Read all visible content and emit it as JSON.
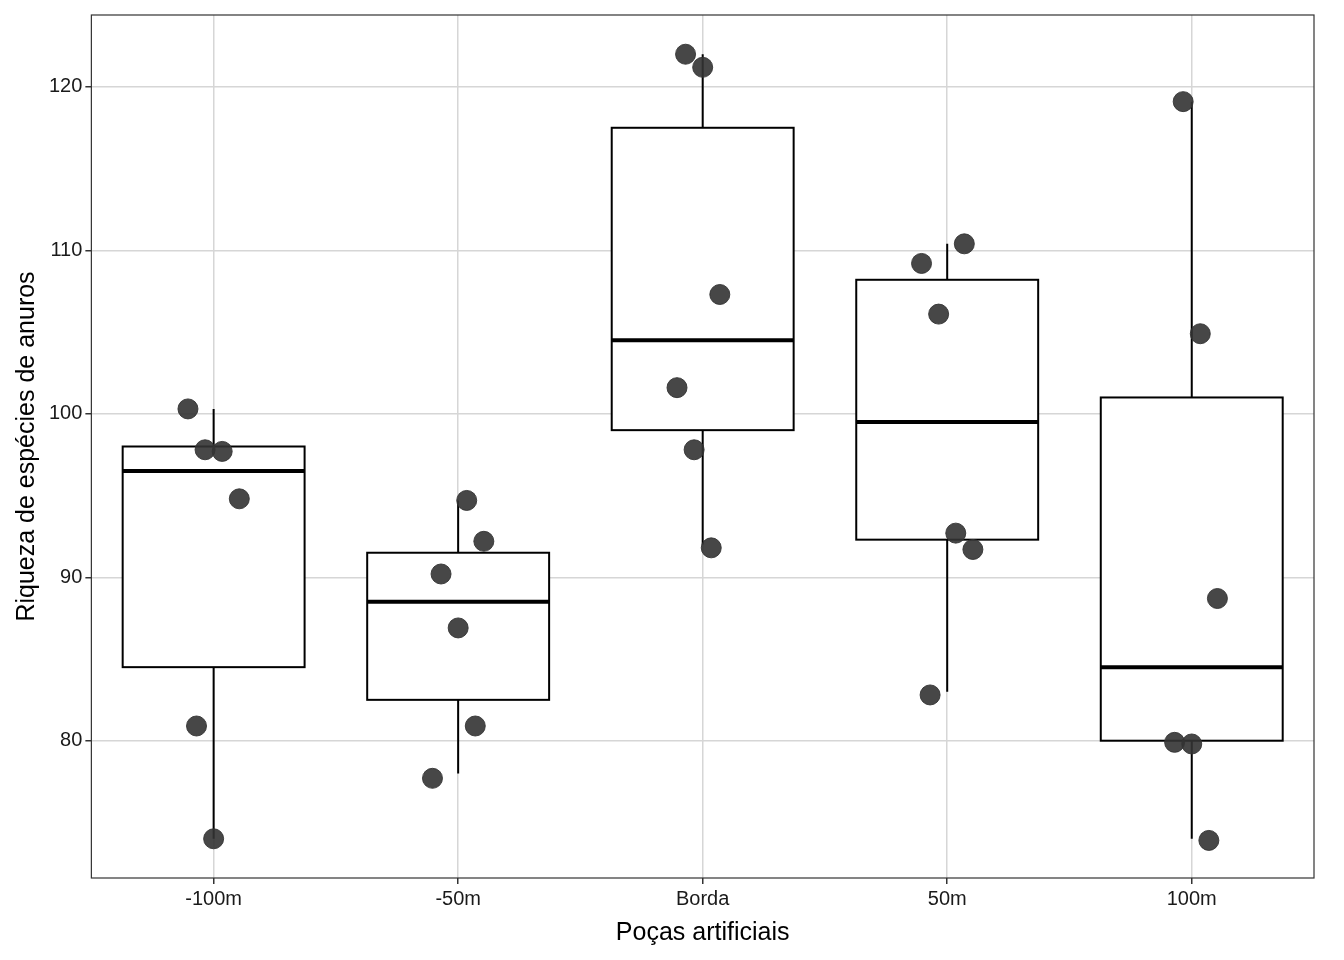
{
  "chart_data": {
    "type": "box",
    "xlabel": "Poças artificiais",
    "ylabel": "Riqueza de espécies de anuros",
    "categories": [
      "-100m",
      "-50m",
      "Borda",
      "50m",
      "100m"
    ],
    "values": [
      [
        100.3,
        97.8,
        97.7,
        94.8,
        80.9,
        74.0
      ],
      [
        94.7,
        92.2,
        90.2,
        86.9,
        80.9,
        77.7
      ],
      [
        122.0,
        121.2,
        107.3,
        101.6,
        97.8,
        91.8
      ],
      [
        110.4,
        109.2,
        106.1,
        92.7,
        91.7,
        82.8
      ],
      [
        119.1,
        104.9,
        88.7,
        79.9,
        79.8,
        73.9
      ]
    ],
    "boxes": [
      {
        "min": 74.0,
        "q1": 84.5,
        "median": 96.5,
        "q3": 98.0,
        "max": 100.3
      },
      {
        "min": 78.0,
        "q1": 82.5,
        "median": 88.5,
        "q3": 91.5,
        "max": 94.7
      },
      {
        "min": 92.0,
        "q1": 99.0,
        "median": 104.5,
        "q3": 117.5,
        "max": 122.0
      },
      {
        "min": 83.0,
        "q1": 92.3,
        "median": 99.5,
        "q3": 108.2,
        "max": 110.4
      },
      {
        "min": 74.0,
        "q1": 80.0,
        "median": 84.5,
        "q3": 101.0,
        "max": 119.1
      }
    ],
    "color": "#333333",
    "ylim": [
      71.6,
      124.4
    ],
    "yticks": [
      80,
      90,
      100,
      110,
      120
    ],
    "grid": true
  }
}
